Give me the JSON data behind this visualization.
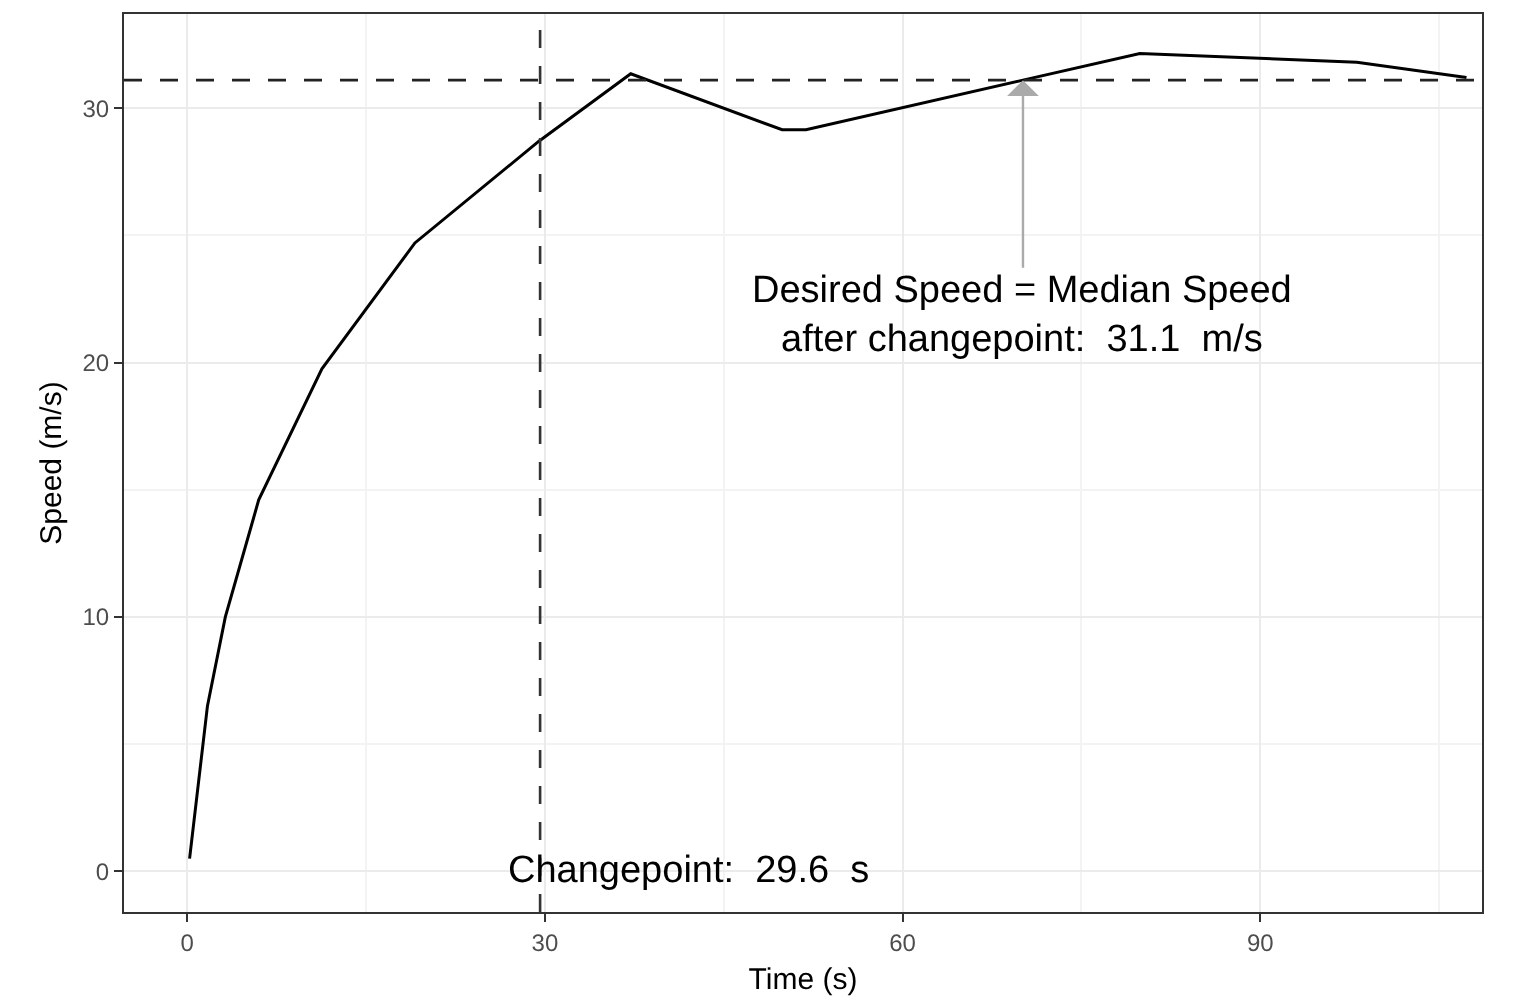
{
  "chart_data": {
    "type": "line",
    "xlabel": "Time (s)",
    "ylabel": "Speed (m/s)",
    "xlim": [
      -5.3,
      108.6
    ],
    "ylim": [
      -1.6,
      33.7
    ],
    "xticks": [
      0,
      30,
      60,
      90
    ],
    "yticks": [
      0,
      10,
      20,
      30
    ],
    "grid": true,
    "line_style": "solid",
    "marker": "none",
    "series": [
      {
        "color": "#000000",
        "x": [
          0.2,
          1.7,
          3.2,
          6.0,
          11.3,
          19.1,
          29.5,
          37.2,
          49.9,
          51.9,
          70.1,
          79.9,
          98.1,
          107.3
        ],
        "values": [
          0.5,
          6.5,
          10.0,
          14.6,
          19.75,
          24.7,
          28.7,
          31.35,
          29.15,
          29.15,
          31.1,
          32.15,
          31.8,
          31.2
        ]
      }
    ],
    "ref_lines": [
      {
        "axis": "x",
        "value": 29.6,
        "color": "#333333",
        "line_style": "dashed",
        "label": "Changepoint:  29.6  s"
      },
      {
        "axis": "y",
        "value": 31.1,
        "color": "#222222",
        "line_style": "dashed"
      }
    ],
    "annotations": [
      {
        "text": "Desired Speed = Median Speed\nafter changepoint:  31.1  m/s",
        "x": 70.1,
        "y": 31.1
      }
    ]
  }
}
